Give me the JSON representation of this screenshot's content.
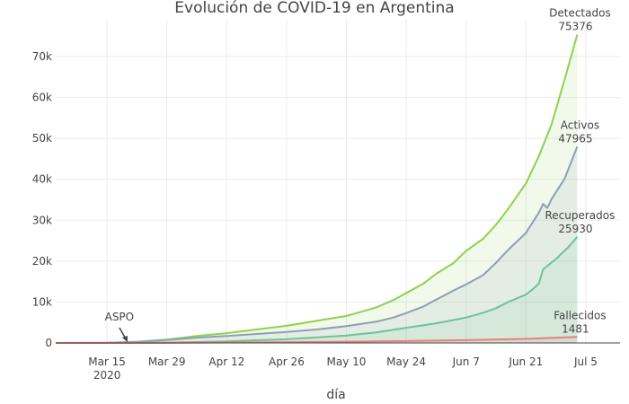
{
  "chart_data": {
    "type": "area",
    "title": "Evolución de COVID-19 en Argentina",
    "xlabel": "día",
    "ylabel": "",
    "ylim": [
      0,
      79000
    ],
    "xlim": [
      "2020-03-03",
      "2020-07-13"
    ],
    "grid": true,
    "x_ticks": [
      {
        "date": "2020-03-15",
        "label": "Mar 15",
        "sublabel": "2020"
      },
      {
        "date": "2020-03-29",
        "label": "Mar 29",
        "sublabel": ""
      },
      {
        "date": "2020-04-12",
        "label": "Apr 12",
        "sublabel": ""
      },
      {
        "date": "2020-04-26",
        "label": "Apr 26",
        "sublabel": ""
      },
      {
        "date": "2020-05-10",
        "label": "May 10",
        "sublabel": ""
      },
      {
        "date": "2020-05-24",
        "label": "May 24",
        "sublabel": ""
      },
      {
        "date": "2020-06-07",
        "label": "Jun 7",
        "sublabel": ""
      },
      {
        "date": "2020-06-21",
        "label": "Jun 21",
        "sublabel": ""
      },
      {
        "date": "2020-07-05",
        "label": "Jul 5",
        "sublabel": ""
      }
    ],
    "y_ticks": [
      {
        "value": 0,
        "label": "0"
      },
      {
        "value": 10000,
        "label": "10k"
      },
      {
        "value": 20000,
        "label": "20k"
      },
      {
        "value": 30000,
        "label": "30k"
      },
      {
        "value": 40000,
        "label": "40k"
      },
      {
        "value": 50000,
        "label": "50k"
      },
      {
        "value": 60000,
        "label": "60k"
      },
      {
        "value": 70000,
        "label": "70k"
      }
    ],
    "series": [
      {
        "key": "detectados",
        "color": "#8fd14f",
        "fill": "rgba(143,209,79,0.12)",
        "x": [
          "2020-03-03",
          "2020-03-15",
          "2020-03-22",
          "2020-03-29",
          "2020-04-05",
          "2020-04-12",
          "2020-04-19",
          "2020-04-26",
          "2020-05-03",
          "2020-05-10",
          "2020-05-17",
          "2020-05-21",
          "2020-05-24",
          "2020-05-28",
          "2020-05-31",
          "2020-06-04",
          "2020-06-07",
          "2020-06-11",
          "2020-06-14",
          "2020-06-17",
          "2020-06-21",
          "2020-06-24",
          "2020-06-27",
          "2020-06-30",
          "2020-07-03"
        ],
        "values": [
          1,
          45,
          300,
          820,
          1700,
          2400,
          3300,
          4200,
          5400,
          6600,
          8700,
          10500,
          12200,
          14500,
          16900,
          19500,
          22500,
          25500,
          28900,
          33000,
          39000,
          45600,
          53500,
          64300,
          75376
        ]
      },
      {
        "key": "activos",
        "color": "#8ba0b5",
        "fill": "rgba(139,160,181,0.12)",
        "x": [
          "2020-03-03",
          "2020-03-15",
          "2020-03-22",
          "2020-03-29",
          "2020-04-05",
          "2020-04-12",
          "2020-04-19",
          "2020-04-26",
          "2020-05-03",
          "2020-05-10",
          "2020-05-17",
          "2020-05-21",
          "2020-05-24",
          "2020-05-28",
          "2020-05-31",
          "2020-06-04",
          "2020-06-07",
          "2020-06-11",
          "2020-06-14",
          "2020-06-17",
          "2020-06-21",
          "2020-06-24",
          "2020-06-25",
          "2020-06-26",
          "2020-06-27",
          "2020-06-30",
          "2020-07-03"
        ],
        "values": [
          1,
          40,
          250,
          700,
          1300,
          1700,
          2200,
          2700,
          3300,
          4100,
          5200,
          6200,
          7300,
          8900,
          10600,
          12800,
          14300,
          16600,
          19600,
          22900,
          26900,
          31800,
          34000,
          33000,
          35200,
          40100,
          47965
        ]
      },
      {
        "key": "recuperados",
        "color": "#6cc39a",
        "fill": "rgba(108,195,154,0.12)",
        "x": [
          "2020-03-03",
          "2020-03-15",
          "2020-03-29",
          "2020-04-12",
          "2020-04-26",
          "2020-05-10",
          "2020-05-17",
          "2020-05-24",
          "2020-05-31",
          "2020-06-04",
          "2020-06-07",
          "2020-06-11",
          "2020-06-14",
          "2020-06-17",
          "2020-06-21",
          "2020-06-23",
          "2020-06-24",
          "2020-06-25",
          "2020-06-28",
          "2020-07-01",
          "2020-07-03"
        ],
        "values": [
          0,
          2,
          80,
          400,
          900,
          1800,
          2600,
          3700,
          4800,
          5600,
          6200,
          7400,
          8500,
          10100,
          11800,
          13500,
          14500,
          18000,
          20500,
          23500,
          25930
        ]
      },
      {
        "key": "fallecidos",
        "color": "#e8807b",
        "fill": "rgba(232,128,123,0.12)",
        "x": [
          "2020-03-03",
          "2020-03-15",
          "2020-03-29",
          "2020-04-12",
          "2020-04-26",
          "2020-05-10",
          "2020-05-24",
          "2020-06-07",
          "2020-06-21",
          "2020-07-03"
        ],
        "values": [
          0,
          2,
          20,
          100,
          190,
          300,
          450,
          670,
          980,
          1481
        ]
      }
    ],
    "annotations": [
      {
        "key": "detectados",
        "label": "Detectados",
        "value": "75376"
      },
      {
        "key": "activos",
        "label": "Activos",
        "value": "47965"
      },
      {
        "key": "recuperados",
        "label": "Recuperados",
        "value": "25930"
      },
      {
        "key": "fallecidos",
        "label": "Fallecidos",
        "value": "1481"
      }
    ],
    "event": {
      "label": "ASPO",
      "date": "2020-03-20",
      "value": 0
    }
  }
}
